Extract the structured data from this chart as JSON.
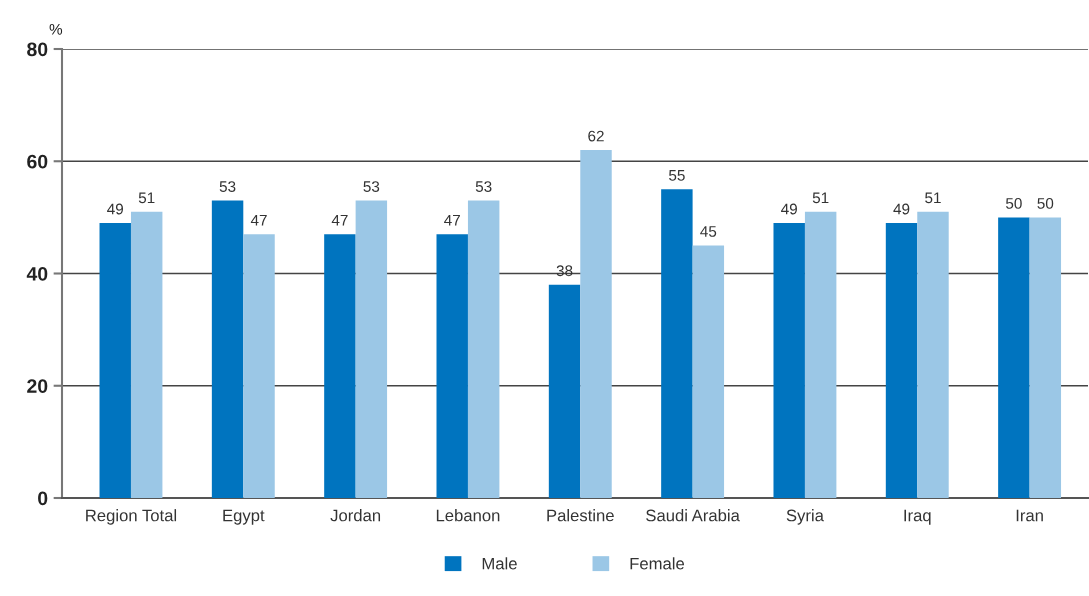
{
  "chart_data": {
    "type": "bar",
    "ylabel": "%",
    "categories": [
      "Region Total",
      "Egypt",
      "Jordan",
      "Lebanon",
      "Palestine",
      "Saudi Arabia",
      "Syria",
      "Iraq",
      "Iran"
    ],
    "series": [
      {
        "name": "Male",
        "color": "#0074bf",
        "values": [
          49,
          53,
          47,
          47,
          38,
          55,
          49,
          49,
          50
        ]
      },
      {
        "name": "Female",
        "color": "#9bc7e6",
        "values": [
          51,
          47,
          53,
          53,
          62,
          45,
          51,
          51,
          50
        ]
      }
    ],
    "ylim": [
      0,
      80
    ],
    "yticks": [
      0,
      20,
      40,
      60,
      80
    ],
    "grid": "y",
    "legend": "bottom",
    "data_labels": true
  }
}
